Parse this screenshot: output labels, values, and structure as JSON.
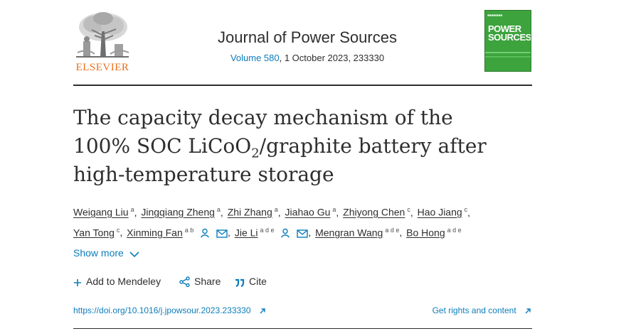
{
  "publisher": {
    "wordmark": "ELSEVIER",
    "brand_color": "#e9711c"
  },
  "journal": {
    "name": "Journal of Power Sources",
    "volume_link": "Volume 580",
    "issue_rest": ", 1 October 2023, 233330"
  },
  "cover": {
    "line1": "POWER",
    "line2": "SOURCES",
    "color": "#3da33d"
  },
  "article": {
    "title_part1": "The capacity decay mechanism of the 100% SOC LiCoO",
    "title_sub": "2",
    "title_part2": "/graphite battery after high-temperature storage"
  },
  "authors": [
    {
      "name": "Weigang Liu",
      "aff": "a"
    },
    {
      "name": "Jingqiang Zheng",
      "aff": "a"
    },
    {
      "name": "Zhi Zhang",
      "aff": "a"
    },
    {
      "name": "Jiahao Gu",
      "aff": "a"
    },
    {
      "name": "Zhiyong Chen",
      "aff": "c"
    },
    {
      "name": "Hao Jiang",
      "aff": "c"
    },
    {
      "name": "Yan Tong",
      "aff": "c"
    },
    {
      "name": "Xinming Fan",
      "aff": "a b"
    },
    {
      "name": "Jie Li",
      "aff": "a d e"
    },
    {
      "name": "Mengran Wang",
      "aff": "a d e"
    },
    {
      "name": "Bo Hong",
      "aff": "a d e"
    }
  ],
  "show_more": "Show more",
  "actions": {
    "mendeley": "Add to Mendeley",
    "share": "Share",
    "cite": "Cite"
  },
  "links": {
    "doi": "https://doi.org/10.1016/j.jpowsour.2023.233330",
    "rights": "Get rights and content"
  },
  "colors": {
    "link": "#0c7dbb",
    "text": "#2e2e2e"
  },
  "icons": [
    "elsevier-tree-logo",
    "person-icon",
    "mail-icon",
    "chevron-down-icon",
    "plus-icon",
    "share-icon",
    "quote-icon",
    "external-link-icon"
  ]
}
